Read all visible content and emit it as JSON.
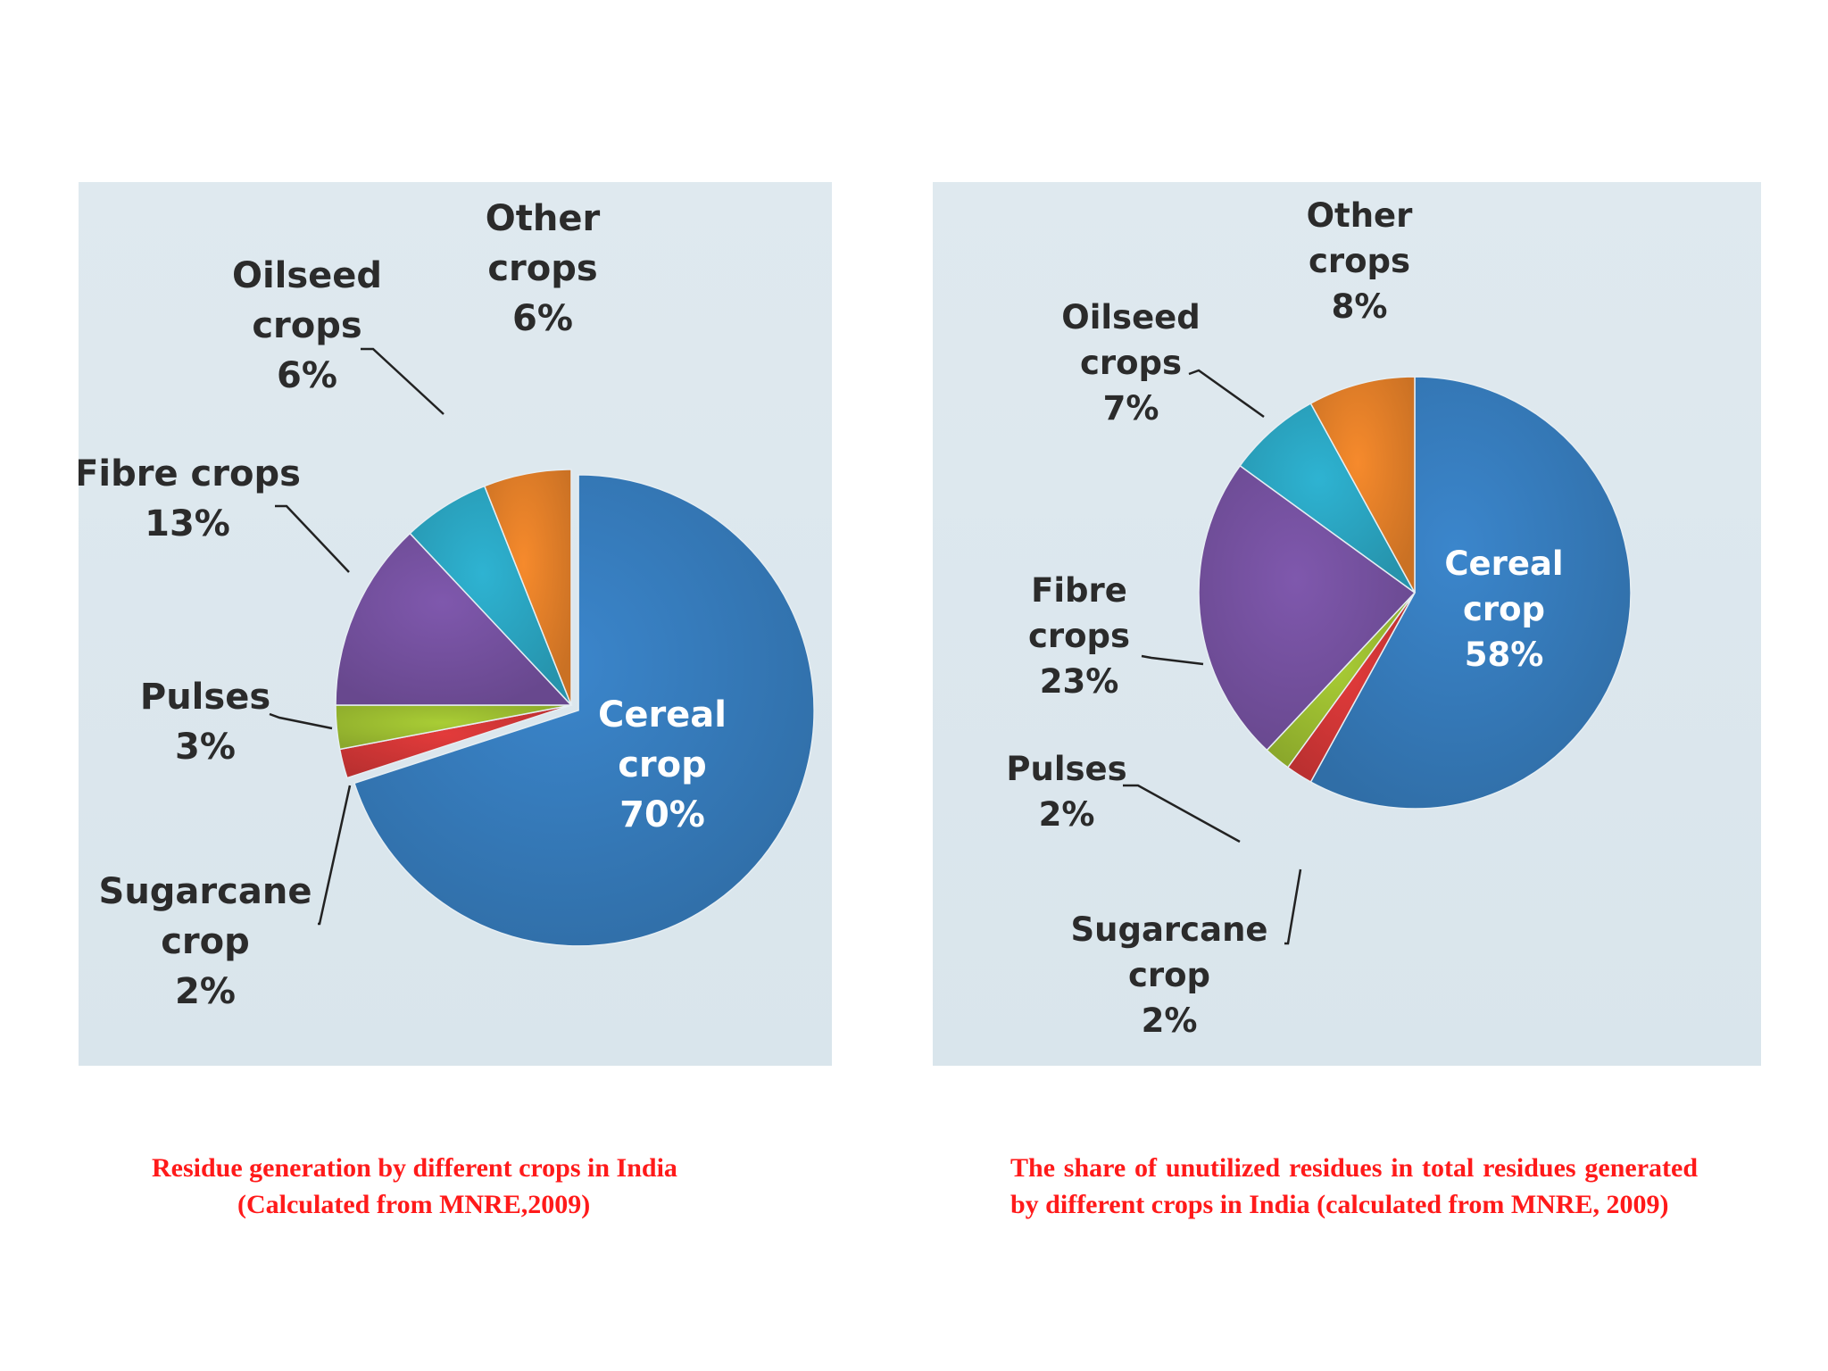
{
  "chart_data": [
    {
      "type": "pie",
      "caption_line1": "Residue generation by different crops in India",
      "caption_line2": "(Calculated from MNRE,2009)",
      "slices": [
        {
          "key": "cereal",
          "label_lines": [
            "Cereal",
            "crop",
            "70%"
          ],
          "value": 70,
          "color": "#3b86cc"
        },
        {
          "key": "sugarcane",
          "label_lines": [
            "Sugarcane",
            "crop",
            "2%"
          ],
          "value": 2,
          "color": "#e33b3b"
        },
        {
          "key": "pulses",
          "label_lines": [
            "Pulses",
            "3%"
          ],
          "value": 3,
          "color": "#a9cd35"
        },
        {
          "key": "fibre",
          "label_lines": [
            "Fibre crops",
            "13%"
          ],
          "value": 13,
          "color": "#7f58ad"
        },
        {
          "key": "oilseed",
          "label_lines": [
            "Oilseed",
            "crops",
            "6%"
          ],
          "value": 6,
          "color": "#2eb3d2"
        },
        {
          "key": "other",
          "label_lines": [
            "Other",
            "crops",
            "6%"
          ],
          "value": 6,
          "color": "#f68a2c"
        }
      ]
    },
    {
      "type": "pie",
      "caption": "The share of unutilized residues in total residues generated by different crops in India (calculated from MNRE, 2009)",
      "slices": [
        {
          "key": "cereal",
          "label_lines": [
            "Cereal",
            "crop",
            "58%"
          ],
          "value": 58,
          "color": "#3b86cc"
        },
        {
          "key": "sugarcane",
          "label_lines": [
            "Sugarcane",
            "crop",
            "2%"
          ],
          "value": 2,
          "color": "#e33b3b"
        },
        {
          "key": "pulses",
          "label_lines": [
            "Pulses",
            "2%"
          ],
          "value": 2,
          "color": "#a9cd35"
        },
        {
          "key": "fibre",
          "label_lines": [
            "Fibre",
            "crops",
            "23%"
          ],
          "value": 23,
          "color": "#7f58ad"
        },
        {
          "key": "oilseed",
          "label_lines": [
            "Oilseed",
            "crops",
            "7%"
          ],
          "value": 7,
          "color": "#2eb3d2"
        },
        {
          "key": "other",
          "label_lines": [
            "Other",
            "crops",
            "8%"
          ],
          "value": 8,
          "color": "#f68a2c"
        }
      ]
    }
  ]
}
